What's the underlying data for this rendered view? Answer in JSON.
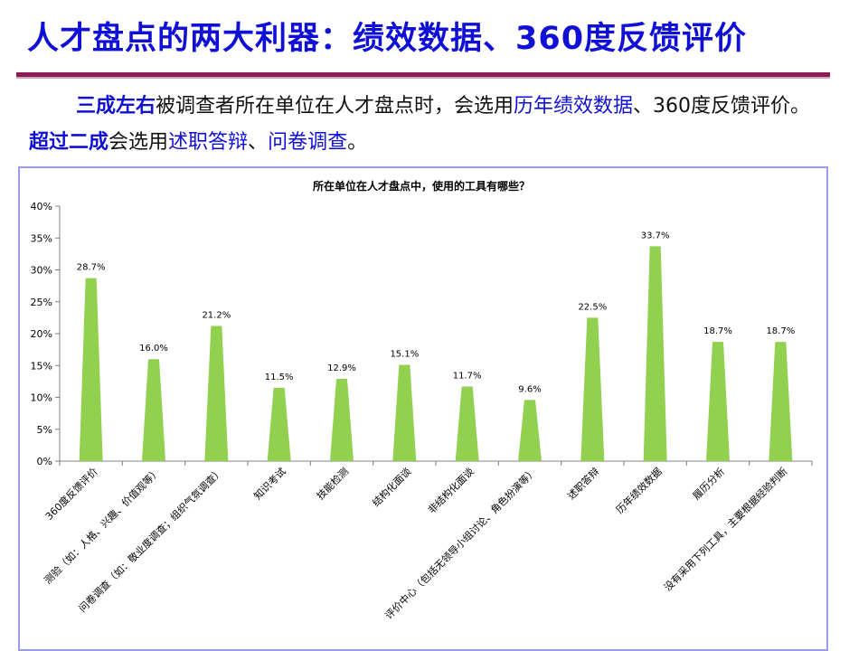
{
  "slide": {
    "title": "人才盘点的两大利器：绩效数据、360度反馈评价",
    "summary": {
      "part1": "三成左右",
      "part2": "被调查者所在单位在人才盘点时，会选用",
      "part3": "历年绩效数据",
      "part4": "、360度反馈评价。",
      "part5": "超过二成",
      "part6": "会选用",
      "part7": "述职答辩",
      "part8": "、",
      "part9": "问卷调查",
      "part10": "。"
    }
  },
  "colors": {
    "title": "#0f0fd6",
    "title_rule": "#8c1b58",
    "chart_border": "#9c9ce6",
    "bar_fill": "#92d050"
  },
  "chart_data": {
    "type": "bar",
    "title": "所在单位在人才盘点中，使用的工具有哪些？",
    "categories": [
      "360度反馈评价",
      "测验（如：人格、兴趣、价值观等）",
      "问卷调查（如：敬业度调查；组织气氛调查）",
      "知识考试",
      "技能检测",
      "结构化面谈",
      "非结构化面谈",
      "评价中心（包括无领导小组讨论、角色扮演等）",
      "述职答辩",
      "历年绩效数据",
      "履历分析",
      "没有采用下列工具，主要根据经验判断"
    ],
    "values": [
      28.7,
      16.0,
      21.2,
      11.5,
      12.9,
      15.1,
      11.7,
      9.6,
      22.5,
      33.7,
      18.7,
      18.7
    ],
    "value_labels": [
      "28.7%",
      "16.0%",
      "21.2%",
      "11.5%",
      "12.9%",
      "15.1%",
      "11.7%",
      "9.6%",
      "22.5%",
      "33.7%",
      "18.7%",
      "18.7%"
    ],
    "ylim": [
      0,
      40
    ],
    "y_ticks": [
      0,
      5,
      10,
      15,
      20,
      25,
      30,
      35,
      40
    ],
    "y_tick_labels": [
      "0%",
      "5%",
      "10%",
      "15%",
      "20%",
      "25%",
      "30%",
      "35%",
      "40%"
    ],
    "grid": false,
    "legend": "none",
    "bar_shape": "triangle"
  }
}
